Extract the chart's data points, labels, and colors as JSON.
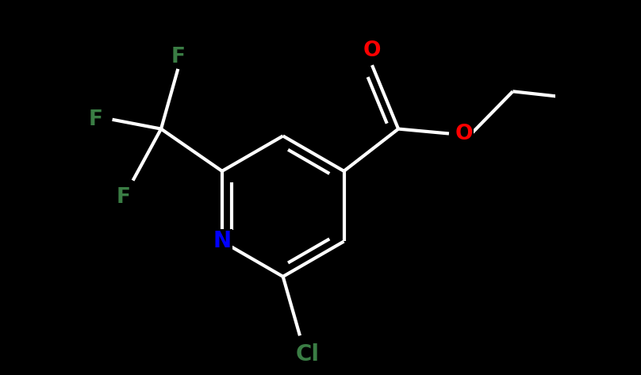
{
  "background_color": "#000000",
  "bond_color": "#ffffff",
  "atom_colors": {
    "F": "#3a7d44",
    "N": "#0000ff",
    "O": "#ff0000",
    "Cl": "#3a7d44",
    "C": "#ffffff"
  },
  "bond_width": 3.0,
  "figsize": [
    8.08,
    4.73
  ],
  "dpi": 100,
  "xlim": [
    -2.2,
    2.8
  ],
  "ylim": [
    -2.0,
    2.0
  ]
}
